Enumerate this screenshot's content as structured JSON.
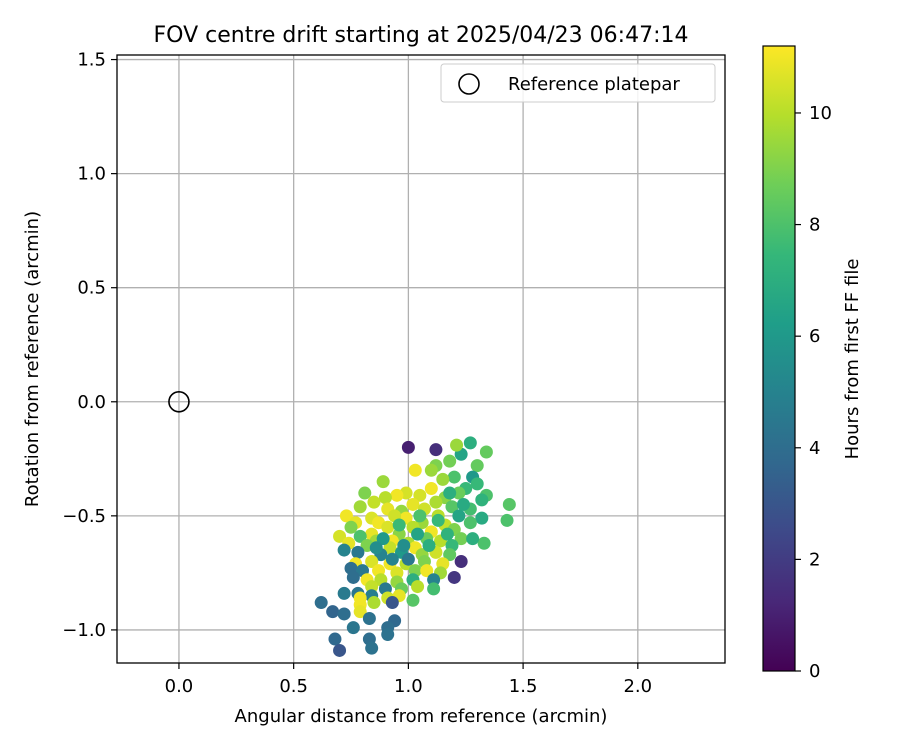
{
  "chart_data": {
    "type": "scatter",
    "title": "FOV centre drift starting at 2025/04/23 06:47:14",
    "xlabel": "Angular distance from reference (arcmin)",
    "ylabel": "Rotation from reference (arcmin)",
    "xlim": [
      -0.27,
      2.38
    ],
    "ylim": [
      -1.145,
      1.52
    ],
    "xticks": [
      0.0,
      0.5,
      1.0,
      1.5,
      2.0
    ],
    "xtick_labels": [
      "0.0",
      "0.5",
      "1.0",
      "1.5",
      "2.0"
    ],
    "yticks": [
      -1.0,
      -0.5,
      0.0,
      0.5,
      1.0,
      1.5
    ],
    "ytick_labels": [
      "−1.0",
      "−0.5",
      "0.0",
      "0.5",
      "1.0",
      "1.5"
    ],
    "grid": true,
    "legend": {
      "position": "top-right",
      "entries": [
        "Reference platepar"
      ]
    },
    "reference_point": {
      "x": 0.0,
      "y": 0.0,
      "label": "Reference platepar",
      "marker": "open-circle"
    },
    "colorbar": {
      "label": "Hours from first FF file",
      "range": [
        0,
        11.2
      ],
      "ticks": [
        0,
        2,
        4,
        6,
        8,
        10
      ],
      "tick_labels": [
        "0",
        "2",
        "4",
        "6",
        "8",
        "10"
      ],
      "colormap": "viridis",
      "colormap_stops": [
        "#440154",
        "#482878",
        "#3e4989",
        "#31688e",
        "#26828e",
        "#1f9e89",
        "#35b779",
        "#6ece58",
        "#b5de2b",
        "#fde725"
      ]
    },
    "series": [
      {
        "color_by": "hours",
        "points": [
          [
            1.0,
            -0.2,
            1.0
          ],
          [
            1.12,
            -0.21,
            1.5
          ],
          [
            1.23,
            -0.23,
            6.5
          ],
          [
            1.27,
            -0.18,
            7.0
          ],
          [
            1.34,
            -0.22,
            8.5
          ],
          [
            1.21,
            -0.19,
            9.5
          ],
          [
            1.3,
            -0.28,
            8.5
          ],
          [
            1.18,
            -0.26,
            8.8
          ],
          [
            1.12,
            -0.28,
            9.0
          ],
          [
            1.1,
            -0.3,
            9.5
          ],
          [
            1.03,
            -0.3,
            11.0
          ],
          [
            1.28,
            -0.33,
            6.0
          ],
          [
            1.2,
            -0.33,
            8.0
          ],
          [
            1.15,
            -0.34,
            9.5
          ],
          [
            1.25,
            -0.38,
            7.5
          ],
          [
            1.3,
            -0.36,
            7.5
          ],
          [
            0.89,
            -0.35,
            9.5
          ],
          [
            1.1,
            -0.38,
            11.0
          ],
          [
            1.05,
            -0.41,
            10.5
          ],
          [
            0.99,
            -0.4,
            10.5
          ],
          [
            0.95,
            -0.41,
            11.0
          ],
          [
            0.81,
            -0.4,
            9.0
          ],
          [
            0.9,
            -0.42,
            10.0
          ],
          [
            1.16,
            -0.42,
            9.2
          ],
          [
            1.22,
            -0.4,
            8.6
          ],
          [
            1.34,
            -0.41,
            8.0
          ],
          [
            1.32,
            -0.43,
            7.2
          ],
          [
            1.12,
            -0.44,
            9.8
          ],
          [
            1.02,
            -0.45,
            10.8
          ],
          [
            0.85,
            -0.44,
            10.2
          ],
          [
            0.91,
            -0.47,
            10.8
          ],
          [
            0.79,
            -0.46,
            9.6
          ],
          [
            0.97,
            -0.48,
            9.4
          ],
          [
            1.07,
            -0.47,
            10.4
          ],
          [
            1.19,
            -0.46,
            8.2
          ],
          [
            1.27,
            -0.47,
            7.8
          ],
          [
            1.44,
            -0.45,
            8.2
          ],
          [
            1.22,
            -0.5,
            6.5
          ],
          [
            1.32,
            -0.51,
            6.8
          ],
          [
            1.43,
            -0.52,
            8.0
          ],
          [
            1.13,
            -0.5,
            10.0
          ],
          [
            0.99,
            -0.51,
            11.0
          ],
          [
            0.94,
            -0.5,
            10.4
          ],
          [
            0.84,
            -0.51,
            10.6
          ],
          [
            0.73,
            -0.5,
            11.0
          ],
          [
            0.77,
            -0.53,
            10.8
          ],
          [
            0.87,
            -0.53,
            11.0
          ],
          [
            0.75,
            -0.55,
            9.0
          ],
          [
            0.91,
            -0.55,
            10.6
          ],
          [
            1.06,
            -0.53,
            9.5
          ],
          [
            1.16,
            -0.54,
            10.2
          ],
          [
            1.27,
            -0.53,
            8.0
          ],
          [
            1.2,
            -0.56,
            9.0
          ],
          [
            1.1,
            -0.57,
            11.0
          ],
          [
            1.02,
            -0.55,
            10.0
          ],
          [
            0.96,
            -0.58,
            9.2
          ],
          [
            0.84,
            -0.58,
            10.8
          ],
          [
            0.79,
            -0.59,
            8.0
          ],
          [
            0.7,
            -0.59,
            10.5
          ],
          [
            0.86,
            -0.61,
            9.6
          ],
          [
            0.93,
            -0.61,
            11.0
          ],
          [
            1.0,
            -0.62,
            9.8
          ],
          [
            1.08,
            -0.6,
            8.6
          ],
          [
            1.14,
            -0.61,
            10.0
          ],
          [
            1.23,
            -0.6,
            8.8
          ],
          [
            1.33,
            -0.62,
            8.0
          ],
          [
            1.28,
            -0.6,
            7.0
          ],
          [
            1.19,
            -0.63,
            7.5
          ],
          [
            1.03,
            -0.64,
            11.0
          ],
          [
            0.92,
            -0.64,
            10.2
          ],
          [
            0.82,
            -0.63,
            9.0
          ],
          [
            0.74,
            -0.62,
            10.8
          ],
          [
            0.72,
            -0.65,
            5.0
          ],
          [
            0.78,
            -0.66,
            4.5
          ],
          [
            0.88,
            -0.67,
            5.0
          ],
          [
            0.97,
            -0.66,
            6.0
          ],
          [
            1.06,
            -0.67,
            9.4
          ],
          [
            1.12,
            -0.66,
            10.4
          ],
          [
            1.18,
            -0.67,
            8.4
          ],
          [
            1.23,
            -0.7,
            1.5
          ],
          [
            1.15,
            -0.71,
            10.8
          ],
          [
            1.07,
            -0.7,
            9.0
          ],
          [
            0.99,
            -0.71,
            10.0
          ],
          [
            0.92,
            -0.71,
            11.0
          ],
          [
            0.84,
            -0.7,
            10.6
          ],
          [
            0.77,
            -0.71,
            11.0
          ],
          [
            0.75,
            -0.73,
            4.0
          ],
          [
            0.8,
            -0.74,
            4.5
          ],
          [
            0.87,
            -0.74,
            11.0
          ],
          [
            0.95,
            -0.75,
            10.6
          ],
          [
            1.03,
            -0.74,
            9.0
          ],
          [
            1.08,
            -0.74,
            11.0
          ],
          [
            1.14,
            -0.75,
            9.6
          ],
          [
            1.2,
            -0.77,
            1.8
          ],
          [
            1.11,
            -0.78,
            5.0
          ],
          [
            1.02,
            -0.78,
            7.0
          ],
          [
            0.95,
            -0.79,
            9.4
          ],
          [
            0.88,
            -0.78,
            10.0
          ],
          [
            0.82,
            -0.78,
            11.0
          ],
          [
            0.76,
            -0.77,
            4.0
          ],
          [
            0.84,
            -0.81,
            10.2
          ],
          [
            0.9,
            -0.82,
            4.5
          ],
          [
            0.97,
            -0.82,
            8.6
          ],
          [
            1.04,
            -0.81,
            10.0
          ],
          [
            1.11,
            -0.82,
            7.8
          ],
          [
            0.78,
            -0.84,
            4.4
          ],
          [
            0.84,
            -0.85,
            4.8
          ],
          [
            0.79,
            -0.86,
            11.0
          ],
          [
            0.91,
            -0.86,
            10.4
          ],
          [
            0.96,
            -0.85,
            10.8
          ],
          [
            0.93,
            -0.88,
            3.0
          ],
          [
            1.02,
            -0.87,
            8.2
          ],
          [
            0.72,
            -0.84,
            4.6
          ],
          [
            0.85,
            -0.88,
            9.8
          ],
          [
            0.79,
            -0.89,
            11.0
          ],
          [
            0.62,
            -0.88,
            4.0
          ],
          [
            0.79,
            -0.92,
            10.8
          ],
          [
            0.67,
            -0.92,
            3.6
          ],
          [
            0.72,
            -0.93,
            4.0
          ],
          [
            0.83,
            -0.95,
            4.2
          ],
          [
            0.94,
            -0.96,
            3.8
          ],
          [
            0.91,
            -0.99,
            4.0
          ],
          [
            0.76,
            -0.99,
            4.4
          ],
          [
            0.91,
            -1.02,
            4.2
          ],
          [
            0.68,
            -1.04,
            3.8
          ],
          [
            0.83,
            -1.04,
            4.0
          ],
          [
            0.84,
            -1.08,
            4.2
          ],
          [
            0.7,
            -1.09,
            3.0
          ],
          [
            0.98,
            -0.63,
            5.5
          ],
          [
            1.04,
            -0.58,
            6.5
          ],
          [
            0.89,
            -0.6,
            6.0
          ],
          [
            1.09,
            -0.63,
            7.0
          ],
          [
            0.93,
            -0.69,
            5.0
          ],
          [
            1.0,
            -0.69,
            4.5
          ],
          [
            0.86,
            -0.64,
            5.5
          ],
          [
            1.17,
            -0.58,
            7.2
          ],
          [
            1.13,
            -0.52,
            7.5
          ],
          [
            1.05,
            -0.5,
            8.0
          ],
          [
            0.96,
            -0.54,
            7.6
          ],
          [
            1.24,
            -0.45,
            6.8
          ],
          [
            1.18,
            -0.4,
            7.0
          ]
        ]
      }
    ]
  }
}
